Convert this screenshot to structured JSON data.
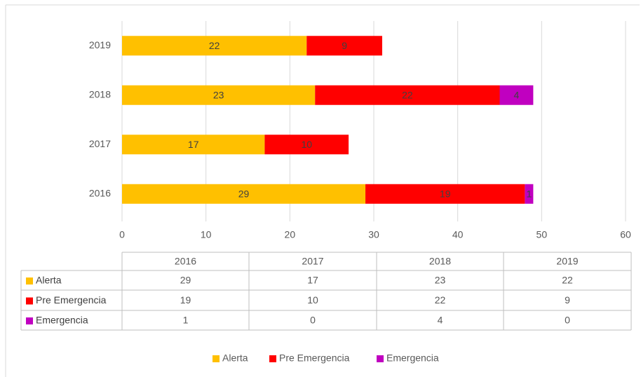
{
  "chart_data": {
    "type": "bar",
    "orientation": "horizontal",
    "stacked": true,
    "categories": [
      "2016",
      "2017",
      "2018",
      "2019"
    ],
    "series": [
      {
        "name": "Alerta",
        "color": "#FFC000",
        "values": [
          29,
          17,
          23,
          22
        ]
      },
      {
        "name": "Pre Emergencia",
        "color": "#FF0000",
        "values": [
          19,
          10,
          22,
          9
        ]
      },
      {
        "name": "Emergencia",
        "color": "#C000C0",
        "values": [
          1,
          0,
          4,
          0
        ]
      }
    ],
    "xlim": [
      0,
      60
    ],
    "xticks": [
      0,
      10,
      20,
      30,
      40,
      50,
      60
    ],
    "grid": true,
    "data_table": true,
    "legend": "bottom"
  }
}
